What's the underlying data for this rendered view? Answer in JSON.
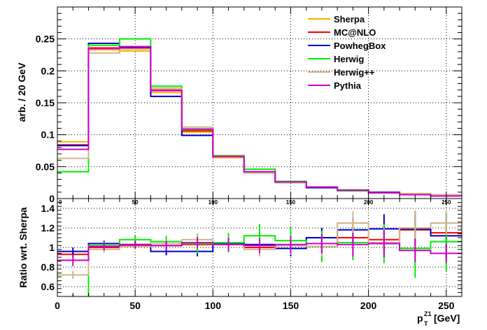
{
  "chart_data": {
    "type": "line",
    "step": true,
    "x_edges": [
      0,
      20,
      40,
      60,
      80,
      100,
      120,
      140,
      160,
      180,
      200,
      220,
      240,
      260
    ],
    "xlabel": "p",
    "xlabel_sub": "T",
    "xlabel_sup": "Z1",
    "xlabel_unit": "[GeV]",
    "xlim": [
      0,
      260
    ],
    "x_ticks": [
      "0",
      "50",
      "100",
      "150",
      "200",
      "250"
    ],
    "x_tick_values": [
      0,
      50,
      100,
      150,
      200,
      250
    ],
    "legend_position": "top-right",
    "grid": true,
    "panels": [
      {
        "name": "distribution",
        "ylabel": "arb. / 20 GeV",
        "ylim": [
          0,
          0.3
        ],
        "y_ticks": [
          "0",
          "0.05",
          "0.1",
          "0.15",
          "0.2",
          "0.25"
        ],
        "y_tick_values": [
          0,
          0.05,
          0.1,
          0.15,
          0.2,
          0.25
        ],
        "x_ticks_small": [
          "0",
          "50",
          "100",
          "150",
          "200",
          "250"
        ],
        "series": [
          {
            "name": "Sherpa",
            "color": "#ffb000",
            "values": [
              0.089,
              0.233,
              0.231,
              0.166,
              0.104,
              0.064,
              0.041,
              0.025,
              0.018,
              0.012,
              0.009,
              0.006,
              0.005
            ]
          },
          {
            "name": "MC@NLO",
            "color": "#ff0000",
            "values": [
              0.084,
              0.236,
              0.235,
              0.17,
              0.106,
              0.067,
              0.041,
              0.026,
              0.018,
              0.013,
              0.009,
              0.007,
              0.006
            ]
          },
          {
            "name": "PowhegBox",
            "color": "#0000cc",
            "values": [
              0.083,
              0.243,
              0.237,
              0.16,
              0.099,
              0.066,
              0.042,
              0.025,
              0.017,
              0.013,
              0.01,
              0.007,
              0.005
            ]
          },
          {
            "name": "Herwig",
            "color": "#00ee00",
            "values": [
              0.042,
              0.24,
              0.25,
              0.176,
              0.108,
              0.067,
              0.046,
              0.027,
              0.018,
              0.012,
              0.009,
              0.006,
              0.005
            ]
          },
          {
            "name": "Herwig++",
            "color": "#d2b48c",
            "values": [
              0.063,
              0.228,
              0.234,
              0.173,
              0.112,
              0.066,
              0.04,
              0.025,
              0.018,
              0.014,
              0.009,
              0.008,
              0.006
            ]
          },
          {
            "name": "Pythia",
            "color": "#cc00cc",
            "values": [
              0.077,
              0.235,
              0.238,
              0.169,
              0.109,
              0.066,
              0.042,
              0.026,
              0.018,
              0.013,
              0.009,
              0.006,
              0.004
            ]
          }
        ]
      },
      {
        "name": "ratio",
        "ylabel": "Ratio wrt. Sherpa",
        "ylim": [
          0.5,
          1.5
        ],
        "y_ticks": [
          "0.6",
          "0.8",
          "1",
          "1.2",
          "1.4"
        ],
        "y_tick_values": [
          0.6,
          0.8,
          1.0,
          1.2,
          1.4
        ],
        "series": [
          {
            "name": "MC@NLO",
            "color": "#ff0000",
            "values": [
              0.93,
              1.0,
              1.02,
              1.02,
              1.03,
              1.05,
              1.0,
              1.02,
              1.01,
              1.1,
              1.08,
              1.18,
              1.15
            ],
            "errors": [
              0.03,
              0.02,
              0.02,
              0.02,
              0.03,
              0.04,
              0.05,
              0.06,
              0.08,
              0.1,
              0.12,
              0.15,
              0.18
            ]
          },
          {
            "name": "PowhegBox",
            "color": "#0000cc",
            "values": [
              0.96,
              1.04,
              1.03,
              0.96,
              0.96,
              1.04,
              1.03,
              0.99,
              1.1,
              1.18,
              1.19,
              1.19,
              1.12
            ],
            "errors": [
              0.04,
              0.03,
              0.03,
              0.04,
              0.05,
              0.06,
              0.07,
              0.08,
              0.1,
              0.12,
              0.15,
              0.18,
              0.22
            ]
          },
          {
            "name": "Herwig",
            "color": "#00ee00",
            "values": [
              0.47,
              1.02,
              1.08,
              1.06,
              1.04,
              1.05,
              1.12,
              1.07,
              1.01,
              1.05,
              1.04,
              0.99,
              1.06
            ],
            "errors": [
              0.05,
              0.04,
              0.05,
              0.06,
              0.1,
              0.1,
              0.12,
              0.14,
              0.16,
              0.18,
              0.2,
              0.3,
              0.3
            ]
          },
          {
            "name": "Herwig++",
            "color": "#d2b48c",
            "values": [
              0.72,
              0.98,
              1.01,
              1.04,
              1.08,
              1.03,
              0.98,
              1.02,
              1.01,
              1.25,
              1.05,
              1.2,
              1.25
            ],
            "errors": [
              0.04,
              0.03,
              0.03,
              0.04,
              0.05,
              0.06,
              0.07,
              0.09,
              0.1,
              0.12,
              0.15,
              0.18,
              0.12
            ]
          },
          {
            "name": "Pythia",
            "color": "#cc00cc",
            "values": [
              0.87,
              1.01,
              1.03,
              1.02,
              1.05,
              1.03,
              1.02,
              1.03,
              1.04,
              1.03,
              1.04,
              0.97,
              0.94
            ],
            "errors": [
              0.06,
              0.04,
              0.04,
              0.05,
              0.06,
              0.07,
              0.08,
              0.09,
              0.1,
              0.12,
              0.14,
              0.12,
              0.1
            ]
          }
        ]
      }
    ]
  }
}
